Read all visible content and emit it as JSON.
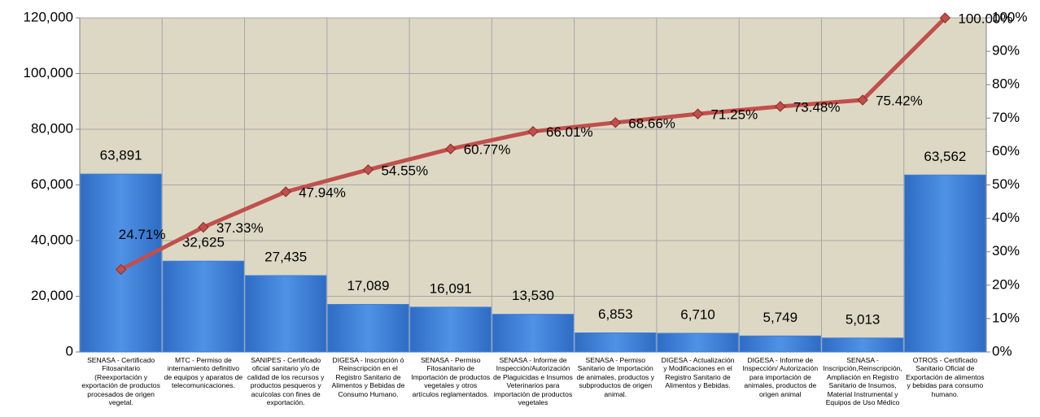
{
  "chart_data": {
    "type": "bar",
    "categories": [
      "SENASA - Certificado\nFitosanitario\n(Reexportación y\nexportación de productos\nprocesados de origen\nvegetal.",
      "MTC - Permiso de\ninternamiento definitivo\nde equipos y aparatos de\ntelecomunicaciones.",
      "SANIPES - Certificado\noficial sanitario y/o de\ncalidad de los recursos y\nproductos pesqueros y\nacuícolas con  fines de\nexportación.",
      "DIGESA - Inscripción ó\nReinscripción en el\nRegistro Sanitario de\nAlimentos y Bebidas de\nConsumo Humano.",
      "SENASA - Permiso\nFitosanitario de\nImportación de productos\nvegetales y otros\nartículos reglamentados.",
      "SENASA - Informe de\nInspección/Autorización\nde Plaguicidas e Insumos\nVeterinarios para\nimportación de productos\nvegetales",
      "SENASA - Permiso\nSanitario de Importación\nde animales, productos y\nsubproductos de origen\nanimal.",
      "DIGESA -  Actualización\ny Modificaciones en el\nRegistro Sanitario de\nAlimentos y Bebidas.",
      "DIGESA - Informe de\nInspección/ Autorización\npara importación de\nanimales, productos de\norigen animal",
      "SENASA -\nInscripción,Reinscripción,\nAmpliación en Registro\nSanitario de Insumos,\nMaterial Instrumental y\nEquipos de Uso Médico",
      "OTROS - Certificado\nSanitario Oficial de\nExportación de alimentos\ny bebidas para consumo\nhumano."
    ],
    "series": [
      {
        "type": "bar",
        "color": "#3f7fd6",
        "values": [
          63891,
          32625,
          27435,
          17089,
          16091,
          13530,
          6853,
          6710,
          5749,
          5013,
          63562
        ],
        "value_labels": [
          "63,891",
          "32,625",
          "27,435",
          "17,089",
          "16,091",
          "13,530",
          "6,853",
          "6,710",
          "5,749",
          "5,013",
          "63,562"
        ]
      },
      {
        "type": "line",
        "axis": "y2",
        "color": "#c0504d",
        "values": [
          24.71,
          37.33,
          47.94,
          54.55,
          60.77,
          66.01,
          68.66,
          71.25,
          73.48,
          75.42,
          100.0
        ],
        "value_labels": [
          "24.71%",
          "37.33%",
          "47.94%",
          "54.55%",
          "60.77%",
          "66.01%",
          "68.66%",
          "71.25%",
          "73.48%",
          "75.42%",
          "100.00%"
        ]
      }
    ],
    "ylim": [
      0,
      120000
    ],
    "yticks": [
      {
        "value": 0,
        "label": "0"
      },
      {
        "value": 20000,
        "label": "20,000"
      },
      {
        "value": 40000,
        "label": "40,000"
      },
      {
        "value": 60000,
        "label": "60,000"
      },
      {
        "value": 80000,
        "label": "80,000"
      },
      {
        "value": 100000,
        "label": "100,000"
      },
      {
        "value": 120000,
        "label": "120,000"
      }
    ],
    "y2lim": [
      0,
      100
    ],
    "y2ticks": [
      {
        "value": 0,
        "label": "0%"
      },
      {
        "value": 10,
        "label": "10%"
      },
      {
        "value": 20,
        "label": "20%"
      },
      {
        "value": 30,
        "label": "30%"
      },
      {
        "value": 40,
        "label": "40%"
      },
      {
        "value": 50,
        "label": "50%"
      },
      {
        "value": 60,
        "label": "60%"
      },
      {
        "value": 70,
        "label": "70%"
      },
      {
        "value": 80,
        "label": "80%"
      },
      {
        "value": 90,
        "label": "90%"
      },
      {
        "value": 100,
        "label": "100%"
      }
    ],
    "grid": true
  }
}
